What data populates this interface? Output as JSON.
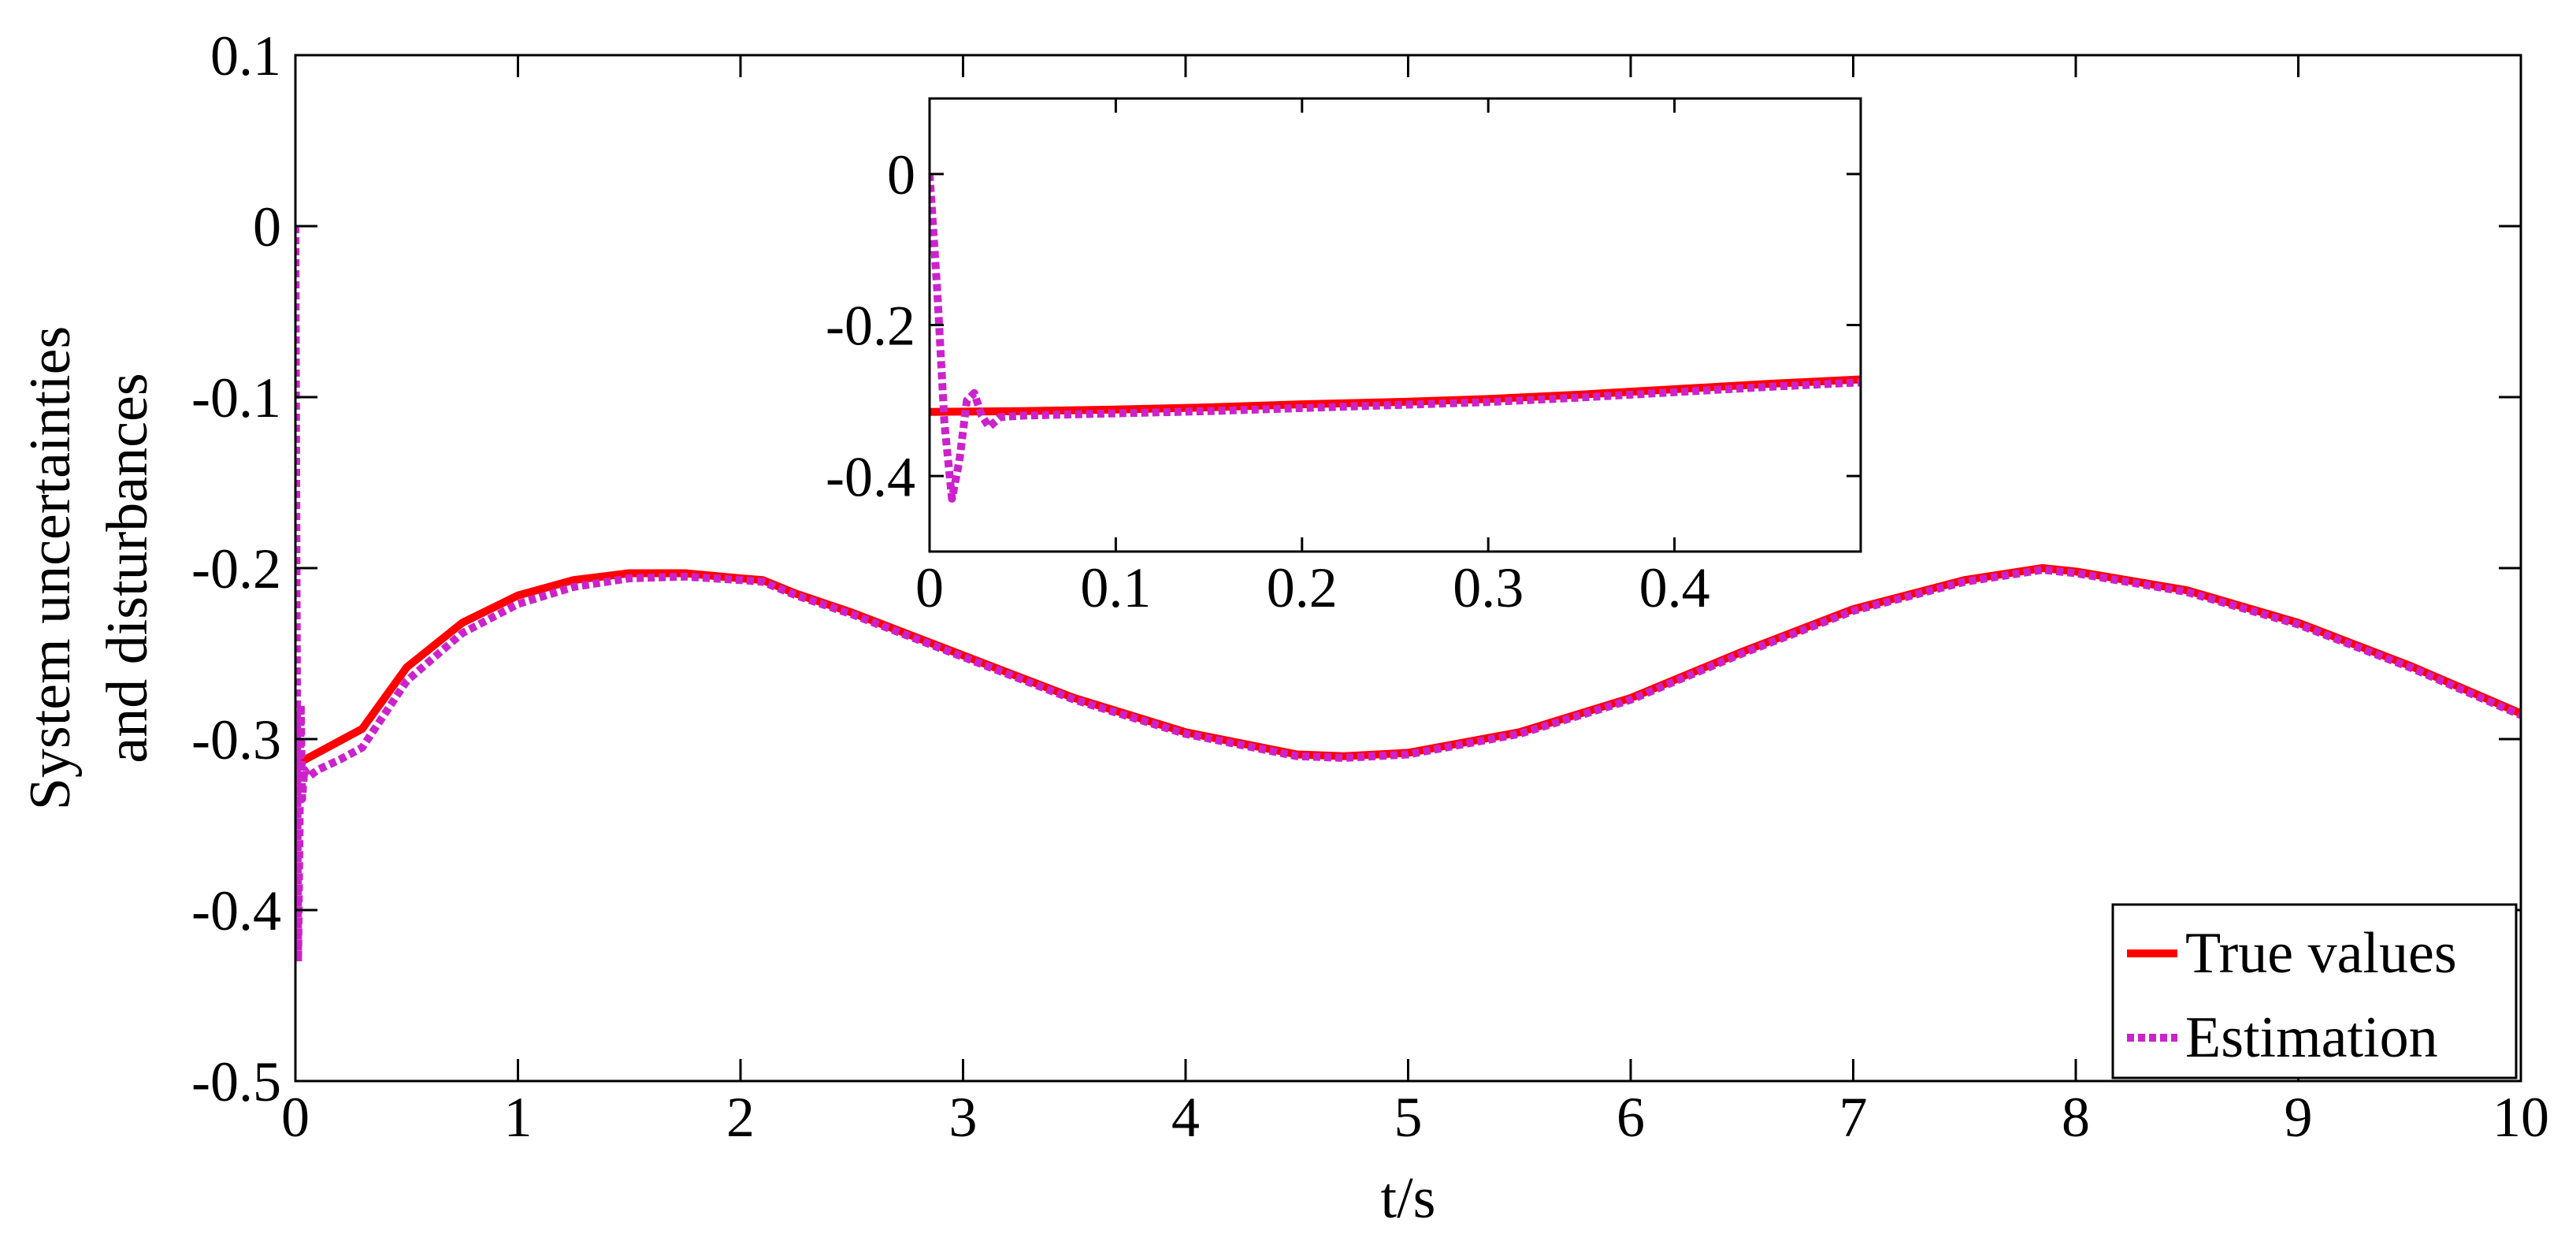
{
  "chart_data": [
    {
      "type": "line",
      "role": "main",
      "xlabel": "t/s",
      "ylabel_lines": [
        "System uncertainties",
        "and disturbances"
      ],
      "xlim": [
        0,
        10
      ],
      "ylim": [
        -0.5,
        0.1
      ],
      "xticks": [
        0,
        1,
        2,
        3,
        4,
        5,
        6,
        7,
        8,
        9,
        10
      ],
      "xtick_labels": [
        "0",
        "1",
        "2",
        "3",
        "4",
        "5",
        "6",
        "7",
        "8",
        "9",
        "10"
      ],
      "yticks": [
        -0.5,
        -0.4,
        -0.3,
        -0.2,
        -0.1,
        0,
        0.1
      ],
      "ytick_labels": [
        "-0.5",
        "-0.4",
        "-0.3",
        "-0.2",
        "-0.1",
        "0",
        "0.1"
      ],
      "grid": false,
      "legend": {
        "position": "bottom-right",
        "entries": [
          "True values",
          "Estimation"
        ]
      },
      "series": [
        {
          "name": "True values",
          "color": "#ff0000",
          "style": "solid",
          "x": [
            0,
            0.1,
            0.2,
            0.3,
            0.5,
            0.75,
            1.0,
            1.25,
            1.5,
            1.75,
            2.0,
            2.1,
            2.25,
            2.5,
            3.0,
            3.5,
            4.0,
            4.5,
            4.71,
            5.0,
            5.5,
            6.0,
            6.5,
            7.0,
            7.5,
            7.85,
            8.0,
            8.5,
            9.0,
            9.5,
            10.0
          ],
          "y": [
            -0.315,
            -0.308,
            -0.301,
            -0.294,
            -0.258,
            -0.232,
            -0.216,
            -0.207,
            -0.203,
            -0.203,
            -0.206,
            -0.207,
            -0.215,
            -0.226,
            -0.251,
            -0.276,
            -0.296,
            -0.309,
            -0.31,
            -0.308,
            -0.296,
            -0.276,
            -0.249,
            -0.224,
            -0.207,
            -0.2,
            -0.202,
            -0.213,
            -0.232,
            -0.257,
            -0.285
          ]
        },
        {
          "name": "Estimation",
          "color": "#cc22cc",
          "style": "dotted",
          "x": [
            0,
            0.005,
            0.012,
            0.018,
            0.024,
            0.03,
            0.04,
            0.06,
            0.1,
            0.2,
            0.3,
            0.5,
            0.75,
            1.0,
            1.25,
            1.5,
            1.75,
            2.0,
            2.1,
            2.25,
            2.5,
            3.0,
            3.5,
            4.0,
            4.5,
            4.71,
            5.0,
            5.5,
            6.0,
            6.5,
            7.0,
            7.5,
            7.85,
            8.0,
            8.5,
            9.0,
            9.5,
            10.0
          ],
          "y": [
            0,
            -0.2,
            -0.43,
            -0.36,
            -0.28,
            -0.335,
            -0.318,
            -0.322,
            -0.318,
            -0.312,
            -0.305,
            -0.266,
            -0.238,
            -0.221,
            -0.211,
            -0.206,
            -0.205,
            -0.207,
            -0.208,
            -0.216,
            -0.227,
            -0.252,
            -0.277,
            -0.297,
            -0.31,
            -0.311,
            -0.309,
            -0.297,
            -0.277,
            -0.25,
            -0.225,
            -0.208,
            -0.201,
            -0.203,
            -0.214,
            -0.233,
            -0.258,
            -0.286
          ]
        }
      ]
    },
    {
      "type": "line",
      "role": "inset",
      "xlim": [
        0,
        0.5
      ],
      "ylim": [
        -0.5,
        0.1
      ],
      "xticks": [
        0,
        0.1,
        0.2,
        0.3,
        0.4
      ],
      "xtick_labels": [
        "0",
        "0.1",
        "0.2",
        "0.3",
        "0.4"
      ],
      "yticks": [
        -0.4,
        -0.2,
        0
      ],
      "ytick_labels": [
        "-0.4",
        "-0.2",
        "0"
      ],
      "grid": false,
      "series": [
        {
          "name": "True values",
          "color": "#ff0000",
          "style": "solid",
          "x": [
            0,
            0.05,
            0.1,
            0.15,
            0.2,
            0.25,
            0.3,
            0.35,
            0.4,
            0.45,
            0.5
          ],
          "y": [
            -0.315,
            -0.314,
            -0.312,
            -0.309,
            -0.305,
            -0.302,
            -0.298,
            -0.292,
            -0.285,
            -0.278,
            -0.272
          ]
        },
        {
          "name": "Estimation",
          "color": "#cc22cc",
          "style": "dotted",
          "x": [
            0,
            0.004,
            0.008,
            0.012,
            0.016,
            0.02,
            0.024,
            0.028,
            0.032,
            0.038,
            0.05,
            0.1,
            0.15,
            0.2,
            0.25,
            0.3,
            0.35,
            0.4,
            0.45,
            0.5
          ],
          "y": [
            0,
            -0.15,
            -0.33,
            -0.43,
            -0.38,
            -0.3,
            -0.29,
            -0.32,
            -0.335,
            -0.322,
            -0.32,
            -0.317,
            -0.314,
            -0.31,
            -0.306,
            -0.302,
            -0.296,
            -0.289,
            -0.282,
            -0.276
          ]
        }
      ]
    }
  ]
}
